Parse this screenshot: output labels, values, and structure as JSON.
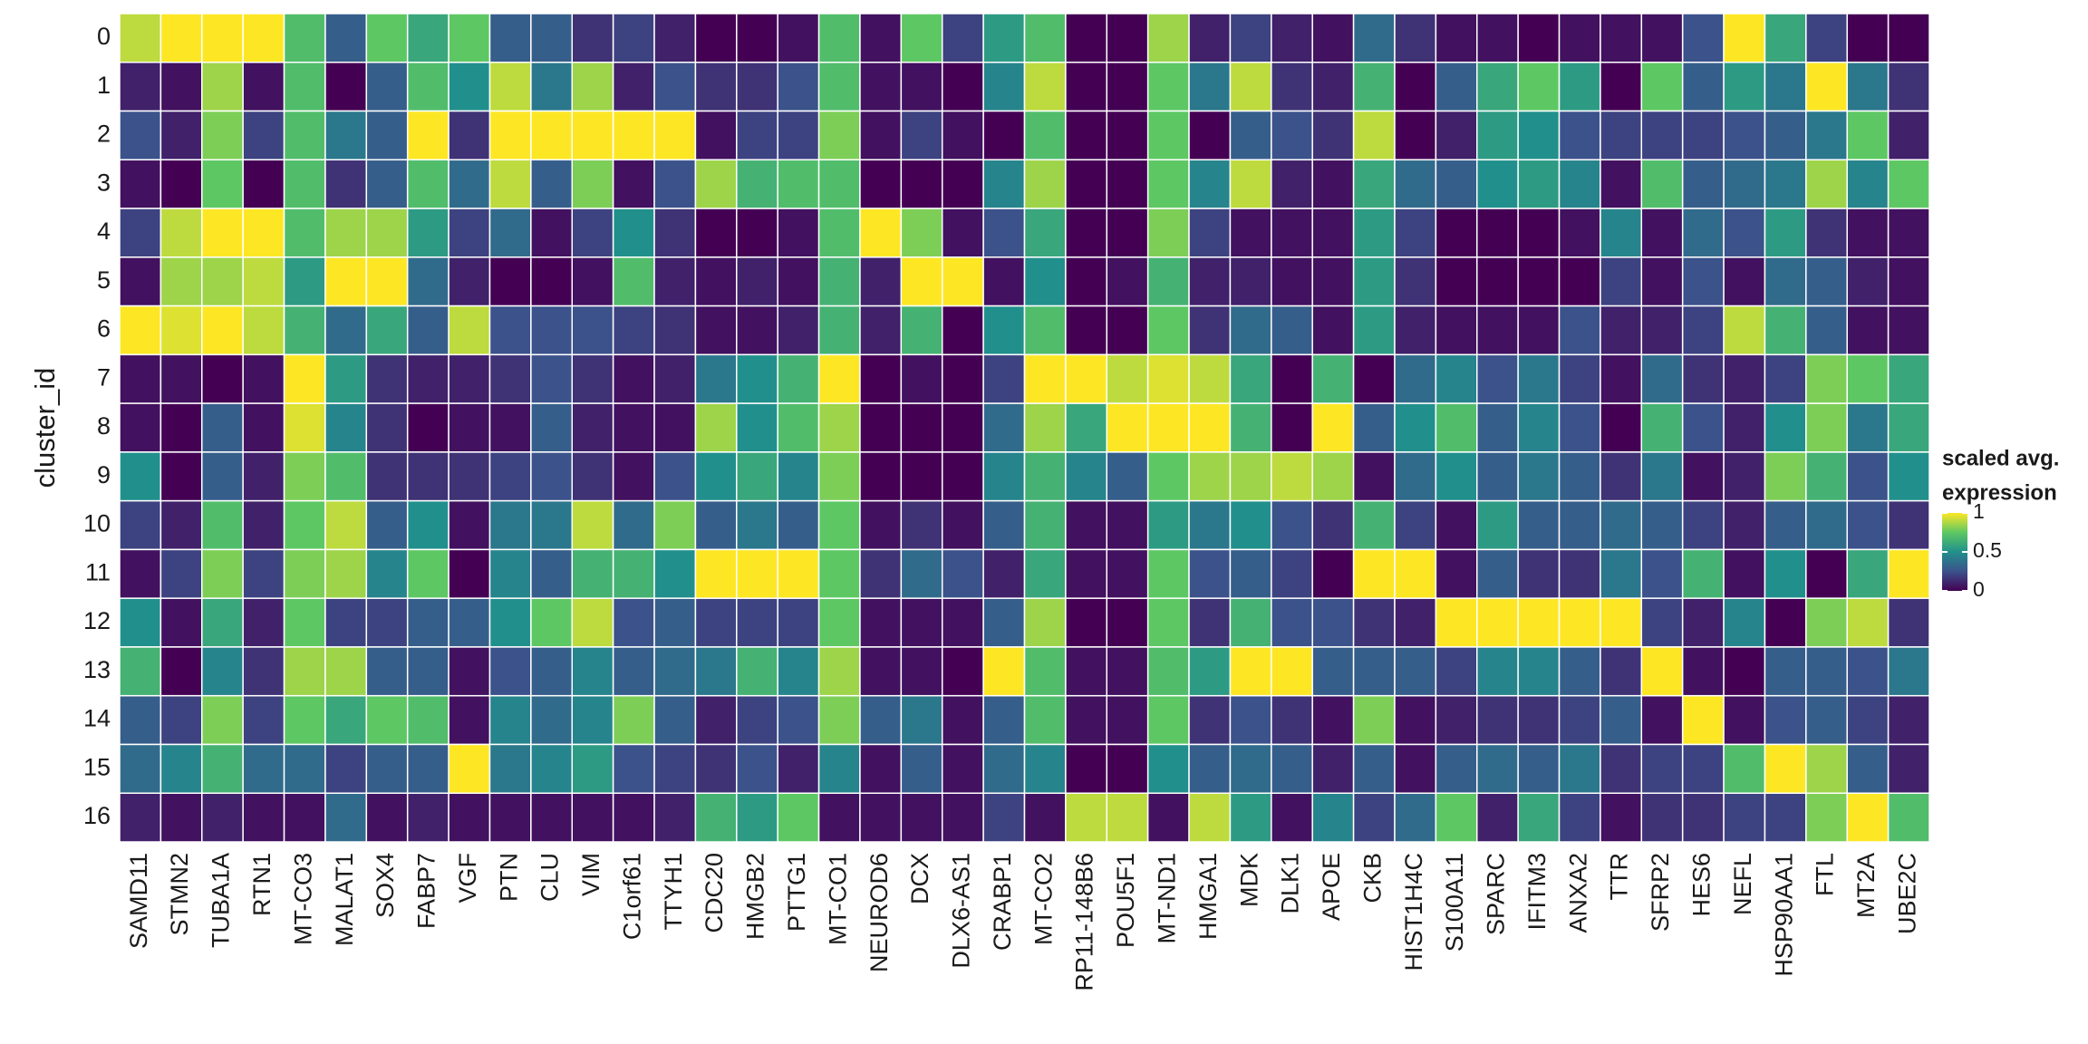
{
  "chart_data": {
    "type": "heatmap",
    "y_label": "cluster_id",
    "legend_title": [
      "scaled avg.",
      "expression"
    ],
    "clim": [
      0,
      1
    ],
    "legend_ticks": [
      0,
      0.5,
      1
    ],
    "colormap": [
      "#440154",
      "#3b528b",
      "#21908c",
      "#5dc863",
      "#fde725"
    ],
    "categories": [
      "SAMD11",
      "STMN2",
      "TUBA1A",
      "RTN1",
      "MT-CO3",
      "MALAT1",
      "SOX4",
      "FABP7",
      "VGF",
      "PTN",
      "CLU",
      "VIM",
      "C1orf61",
      "TTYH1",
      "CDC20",
      "HMGB2",
      "PTTG1",
      "MT-CO1",
      "NEUROD6",
      "DCX",
      "DLX6-AS1",
      "CRABP1",
      "MT-CO2",
      "RP11-148B6",
      "POU5F1",
      "MT-ND1",
      "HMGA1",
      "MDK",
      "DLK1",
      "APOE",
      "CKB",
      "HIST1H4C",
      "S100A11",
      "SPARC",
      "IFITM3",
      "ANXA2",
      "TTR",
      "SFRP2",
      "HES6",
      "NEFL",
      "HSP90AA1",
      "FTL",
      "MT2A",
      "UBE2C"
    ],
    "rows": [
      "0",
      "1",
      "2",
      "3",
      "4",
      "5",
      "6",
      "7",
      "8",
      "9",
      "10",
      "11",
      "12",
      "13",
      "14",
      "15",
      "16"
    ],
    "values": [
      [
        0.9,
        1,
        1,
        1,
        0.7,
        0.3,
        0.75,
        0.6,
        0.75,
        0.3,
        0.3,
        0.15,
        0.2,
        0.1,
        0,
        0,
        0.05,
        0.7,
        0.05,
        0.75,
        0.2,
        0.55,
        0.7,
        0,
        0,
        0.85,
        0.1,
        0.2,
        0.1,
        0.05,
        0.35,
        0.15,
        0.05,
        0.05,
        0,
        0.05,
        0.05,
        0.05,
        0.25,
        1,
        0.6,
        0.2,
        0,
        0
      ],
      [
        0.1,
        0.05,
        0.85,
        0.05,
        0.7,
        0,
        0.3,
        0.7,
        0.5,
        0.9,
        0.4,
        0.85,
        0.1,
        0.25,
        0.15,
        0.15,
        0.25,
        0.7,
        0.05,
        0.05,
        0,
        0.45,
        0.9,
        0,
        0,
        0.75,
        0.4,
        0.9,
        0.15,
        0.1,
        0.65,
        0,
        0.3,
        0.6,
        0.75,
        0.55,
        0,
        0.75,
        0.3,
        0.55,
        0.4,
        1,
        0.4,
        0.15
      ],
      [
        0.25,
        0.1,
        0.8,
        0.2,
        0.7,
        0.4,
        0.3,
        1,
        0.15,
        1,
        1,
        1,
        1,
        1,
        0.05,
        0.2,
        0.2,
        0.8,
        0.05,
        0.2,
        0.05,
        0,
        0.7,
        0,
        0,
        0.75,
        0,
        0.3,
        0.25,
        0.15,
        0.9,
        0,
        0.1,
        0.55,
        0.5,
        0.25,
        0.2,
        0.2,
        0.2,
        0.25,
        0.3,
        0.4,
        0.75,
        0.1
      ],
      [
        0.05,
        0,
        0.75,
        0,
        0.7,
        0.15,
        0.3,
        0.7,
        0.35,
        0.9,
        0.3,
        0.8,
        0.05,
        0.25,
        0.85,
        0.65,
        0.7,
        0.7,
        0,
        0,
        0,
        0.45,
        0.85,
        0,
        0,
        0.75,
        0.45,
        0.9,
        0.1,
        0.05,
        0.6,
        0.35,
        0.3,
        0.5,
        0.55,
        0.45,
        0.05,
        0.7,
        0.3,
        0.35,
        0.4,
        0.85,
        0.45,
        0.75
      ],
      [
        0.2,
        0.9,
        1,
        1,
        0.7,
        0.85,
        0.85,
        0.55,
        0.2,
        0.35,
        0.05,
        0.2,
        0.5,
        0.15,
        0,
        0,
        0.05,
        0.7,
        1,
        0.8,
        0.05,
        0.25,
        0.6,
        0,
        0,
        0.8,
        0.2,
        0.05,
        0.05,
        0.05,
        0.55,
        0.2,
        0,
        0,
        0,
        0.05,
        0.45,
        0.05,
        0.35,
        0.25,
        0.55,
        0.15,
        0.05,
        0.05
      ],
      [
        0.05,
        0.85,
        0.85,
        0.9,
        0.55,
        1,
        1,
        0.35,
        0.1,
        0,
        0,
        0.05,
        0.7,
        0.1,
        0.05,
        0.1,
        0.05,
        0.65,
        0.1,
        1,
        1,
        0.05,
        0.5,
        0,
        0.05,
        0.65,
        0.1,
        0.1,
        0.05,
        0.05,
        0.55,
        0.15,
        0,
        0,
        0,
        0,
        0.2,
        0.05,
        0.25,
        0.05,
        0.35,
        0.3,
        0.1,
        0.05
      ],
      [
        1,
        0.95,
        1,
        0.9,
        0.65,
        0.35,
        0.6,
        0.3,
        0.9,
        0.25,
        0.25,
        0.25,
        0.2,
        0.15,
        0.05,
        0.05,
        0.1,
        0.65,
        0.1,
        0.65,
        0,
        0.5,
        0.7,
        0,
        0,
        0.75,
        0.15,
        0.35,
        0.3,
        0.05,
        0.55,
        0.1,
        0.05,
        0.05,
        0.05,
        0.25,
        0.1,
        0.1,
        0.2,
        0.9,
        0.65,
        0.3,
        0.05,
        0.05
      ],
      [
        0.05,
        0.05,
        0,
        0.05,
        1,
        0.55,
        0.15,
        0.1,
        0.1,
        0.15,
        0.25,
        0.15,
        0.05,
        0.1,
        0.4,
        0.5,
        0.65,
        1,
        0,
        0.05,
        0,
        0.2,
        1,
        1,
        0.9,
        0.95,
        0.9,
        0.6,
        0,
        0.65,
        0,
        0.35,
        0.45,
        0.25,
        0.4,
        0.2,
        0.05,
        0.35,
        0.15,
        0.1,
        0.2,
        0.8,
        0.75,
        0.6
      ],
      [
        0.05,
        0,
        0.3,
        0.05,
        0.95,
        0.45,
        0.15,
        0,
        0.05,
        0.05,
        0.3,
        0.1,
        0.05,
        0.05,
        0.85,
        0.5,
        0.7,
        0.85,
        0,
        0,
        0,
        0.35,
        0.85,
        0.6,
        1,
        1,
        1,
        0.65,
        0,
        1,
        0.3,
        0.5,
        0.7,
        0.3,
        0.45,
        0.25,
        0,
        0.65,
        0.25,
        0.1,
        0.5,
        0.8,
        0.4,
        0.6
      ],
      [
        0.5,
        0,
        0.3,
        0.1,
        0.8,
        0.7,
        0.15,
        0.15,
        0.15,
        0.2,
        0.25,
        0.15,
        0.05,
        0.25,
        0.5,
        0.6,
        0.45,
        0.8,
        0,
        0,
        0,
        0.45,
        0.65,
        0.45,
        0.3,
        0.75,
        0.85,
        0.85,
        0.9,
        0.85,
        0.05,
        0.35,
        0.5,
        0.3,
        0.4,
        0.3,
        0.15,
        0.4,
        0.05,
        0.1,
        0.8,
        0.65,
        0.25,
        0.5
      ],
      [
        0.2,
        0.1,
        0.7,
        0.1,
        0.75,
        0.9,
        0.3,
        0.5,
        0.05,
        0.4,
        0.4,
        0.9,
        0.35,
        0.8,
        0.3,
        0.4,
        0.3,
        0.75,
        0.05,
        0.15,
        0.05,
        0.3,
        0.65,
        0.05,
        0.05,
        0.55,
        0.4,
        0.5,
        0.25,
        0.15,
        0.65,
        0.2,
        0.05,
        0.55,
        0.3,
        0.3,
        0.35,
        0.3,
        0.2,
        0.1,
        0.3,
        0.35,
        0.25,
        0.15
      ],
      [
        0.05,
        0.2,
        0.8,
        0.2,
        0.8,
        0.85,
        0.45,
        0.75,
        0,
        0.45,
        0.3,
        0.65,
        0.65,
        0.5,
        1,
        1,
        1,
        0.75,
        0.15,
        0.35,
        0.25,
        0.1,
        0.6,
        0.05,
        0.05,
        0.75,
        0.25,
        0.3,
        0.2,
        0,
        1,
        1,
        0.05,
        0.3,
        0.15,
        0.15,
        0.4,
        0.25,
        0.65,
        0.05,
        0.5,
        0,
        0.6,
        1
      ],
      [
        0.5,
        0.05,
        0.6,
        0.1,
        0.75,
        0.2,
        0.2,
        0.3,
        0.3,
        0.5,
        0.75,
        0.9,
        0.25,
        0.3,
        0.2,
        0.2,
        0.2,
        0.75,
        0.05,
        0.05,
        0.05,
        0.3,
        0.85,
        0,
        0,
        0.75,
        0.15,
        0.65,
        0.25,
        0.25,
        0.15,
        0.1,
        1,
        1,
        1,
        1,
        1,
        0.2,
        0.1,
        0.45,
        0,
        0.8,
        0.9,
        0.15
      ],
      [
        0.65,
        0,
        0.45,
        0.15,
        0.85,
        0.85,
        0.3,
        0.3,
        0.05,
        0.25,
        0.3,
        0.45,
        0.3,
        0.35,
        0.4,
        0.65,
        0.45,
        0.85,
        0.05,
        0.05,
        0,
        1,
        0.7,
        0.05,
        0.05,
        0.7,
        0.55,
        1,
        1,
        0.3,
        0.3,
        0.3,
        0.2,
        0.45,
        0.45,
        0.3,
        0.15,
        1,
        0.05,
        0,
        0.3,
        0.3,
        0.25,
        0.4
      ],
      [
        0.3,
        0.2,
        0.8,
        0.2,
        0.75,
        0.6,
        0.75,
        0.7,
        0.05,
        0.45,
        0.35,
        0.45,
        0.8,
        0.3,
        0.1,
        0.2,
        0.25,
        0.8,
        0.3,
        0.4,
        0.05,
        0.3,
        0.7,
        0.05,
        0.05,
        0.75,
        0.15,
        0.25,
        0.15,
        0.05,
        0.8,
        0.05,
        0.1,
        0.15,
        0.15,
        0.2,
        0.3,
        0.05,
        1,
        0.05,
        0.25,
        0.3,
        0.2,
        0.1
      ],
      [
        0.35,
        0.45,
        0.65,
        0.35,
        0.35,
        0.2,
        0.3,
        0.3,
        1,
        0.4,
        0.45,
        0.55,
        0.25,
        0.2,
        0.15,
        0.25,
        0.1,
        0.45,
        0.05,
        0.3,
        0.05,
        0.35,
        0.45,
        0,
        0,
        0.5,
        0.3,
        0.35,
        0.3,
        0.1,
        0.3,
        0.05,
        0.3,
        0.35,
        0.3,
        0.4,
        0.15,
        0.2,
        0.2,
        0.7,
        1,
        0.85,
        0.3,
        0.1
      ],
      [
        0.1,
        0.05,
        0.1,
        0.05,
        0.05,
        0.35,
        0.05,
        0.1,
        0.05,
        0.05,
        0.05,
        0.05,
        0.05,
        0.1,
        0.65,
        0.55,
        0.75,
        0.05,
        0.05,
        0.05,
        0.05,
        0.2,
        0.05,
        0.9,
        0.9,
        0.05,
        0.9,
        0.55,
        0.05,
        0.45,
        0.2,
        0.35,
        0.75,
        0.1,
        0.6,
        0.2,
        0.05,
        0.15,
        0.15,
        0.2,
        0.2,
        0.8,
        1,
        0.7
      ]
    ]
  }
}
